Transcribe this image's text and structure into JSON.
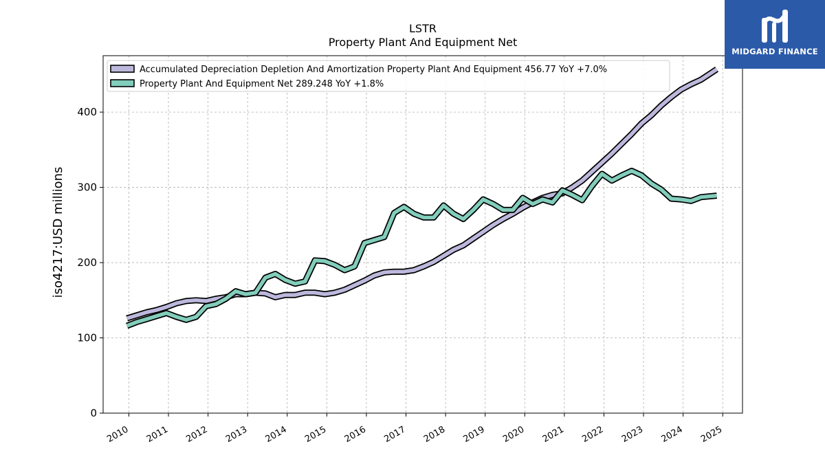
{
  "chart_data": {
    "type": "line",
    "title": "LSTR",
    "subtitle": "Property Plant And Equipment Net",
    "xlabel": "",
    "ylabel": "iso4217:USD  millions",
    "xlim": [
      2009.35,
      2025.5
    ],
    "ylim": [
      0,
      475
    ],
    "x_ticks": [
      "2010",
      "2011",
      "2012",
      "2013",
      "2014",
      "2015",
      "2016",
      "2017",
      "2018",
      "2019",
      "2020",
      "2021",
      "2022",
      "2023",
      "2024",
      "2025"
    ],
    "y_ticks": [
      "0",
      "100",
      "200",
      "300",
      "400"
    ],
    "grid": true,
    "legend_position": "top-left",
    "series": [
      {
        "name": "Accumulated Depreciation Depletion And Amortization Property Plant And Equipment  456.77 YoY +7.0%",
        "color": "#bcb8dc",
        "x": [
          2009.95,
          2010.2,
          2010.45,
          2010.7,
          2010.95,
          2011.2,
          2011.45,
          2011.7,
          2011.95,
          2012.2,
          2012.45,
          2012.7,
          2012.95,
          2013.2,
          2013.45,
          2013.7,
          2013.95,
          2014.2,
          2014.45,
          2014.7,
          2014.95,
          2015.2,
          2015.45,
          2015.7,
          2015.95,
          2016.2,
          2016.45,
          2016.7,
          2016.95,
          2017.2,
          2017.45,
          2017.7,
          2017.95,
          2018.2,
          2018.45,
          2018.7,
          2018.95,
          2019.2,
          2019.45,
          2019.7,
          2019.95,
          2020.2,
          2020.45,
          2020.7,
          2020.95,
          2021.2,
          2021.45,
          2021.7,
          2021.95,
          2022.2,
          2022.45,
          2022.7,
          2022.95,
          2023.2,
          2023.45,
          2023.7,
          2023.95,
          2024.2,
          2024.45,
          2024.85
        ],
        "values": [
          126,
          130,
          134,
          137,
          141,
          146,
          149,
          150,
          149,
          152,
          154,
          158,
          158,
          160,
          159,
          154,
          157,
          157,
          160,
          160,
          158,
          160,
          164,
          170,
          176,
          183,
          187,
          188,
          188,
          190,
          195,
          201,
          209,
          217,
          223,
          232,
          241,
          250,
          258,
          265,
          273,
          280,
          286,
          290,
          292,
          300,
          309,
          321,
          333,
          345,
          358,
          371,
          385,
          396,
          409,
          420,
          430,
          437,
          443,
          457
        ]
      },
      {
        "name": "Property Plant And Equipment Net  289.248 YoY +1.8%",
        "color": "#82cdbb",
        "x": [
          2009.95,
          2010.2,
          2010.45,
          2010.7,
          2010.95,
          2011.2,
          2011.45,
          2011.7,
          2011.95,
          2012.2,
          2012.45,
          2012.7,
          2012.95,
          2013.2,
          2013.45,
          2013.7,
          2013.95,
          2014.2,
          2014.45,
          2014.7,
          2014.95,
          2015.2,
          2015.45,
          2015.7,
          2015.95,
          2016.2,
          2016.45,
          2016.7,
          2016.95,
          2017.2,
          2017.45,
          2017.7,
          2017.95,
          2018.2,
          2018.45,
          2018.7,
          2018.95,
          2019.2,
          2019.45,
          2019.7,
          2019.95,
          2020.2,
          2020.45,
          2020.7,
          2020.95,
          2021.2,
          2021.45,
          2021.7,
          2021.95,
          2022.2,
          2022.45,
          2022.7,
          2022.95,
          2023.2,
          2023.45,
          2023.7,
          2023.95,
          2024.2,
          2024.45,
          2024.85
        ],
        "values": [
          116,
          121,
          125,
          129,
          133,
          128,
          124,
          128,
          142,
          145,
          152,
          162,
          158,
          160,
          180,
          185,
          177,
          172,
          175,
          203,
          202,
          197,
          190,
          195,
          226,
          230,
          234,
          266,
          274,
          265,
          260,
          260,
          276,
          265,
          258,
          270,
          284,
          278,
          270,
          270,
          286,
          278,
          284,
          280,
          296,
          290,
          283,
          302,
          318,
          309,
          316,
          322,
          316,
          305,
          297,
          285,
          284,
          282,
          287,
          289
        ]
      }
    ]
  }
}
